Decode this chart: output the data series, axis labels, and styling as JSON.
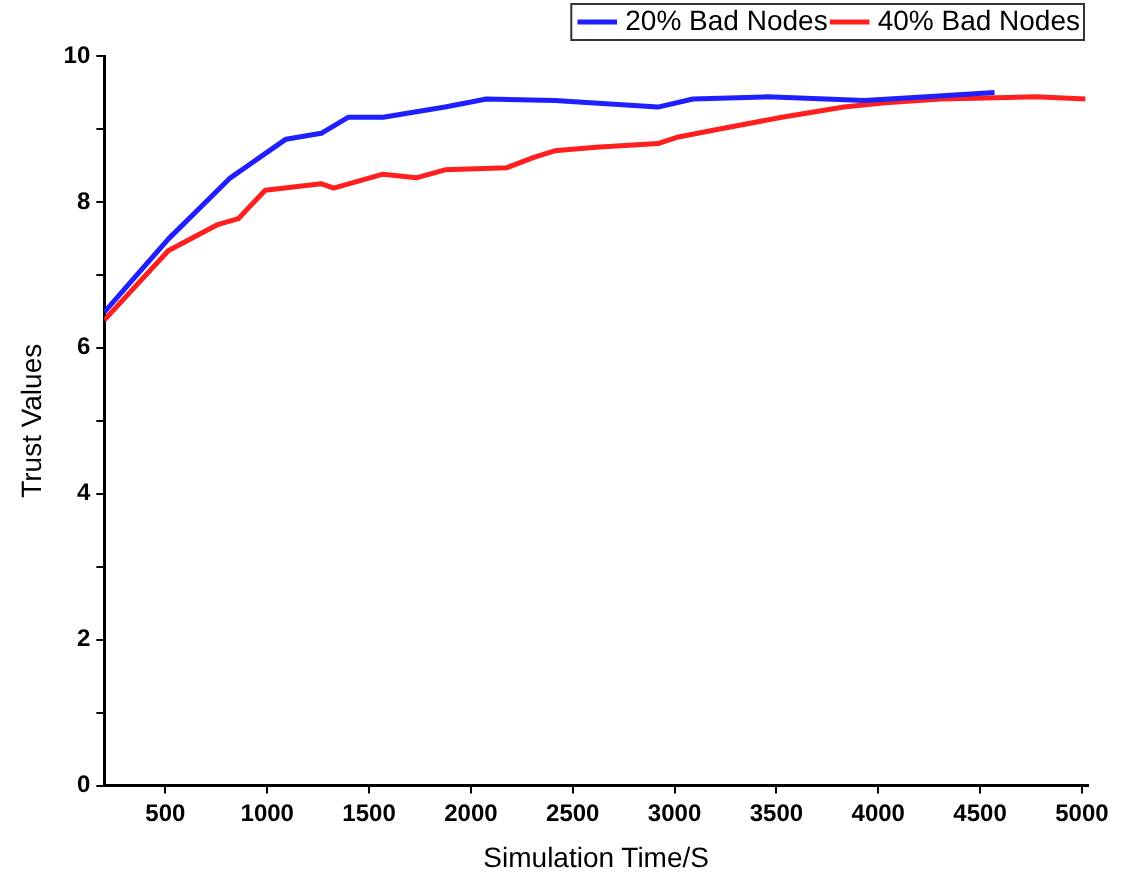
{
  "chart_data": {
    "type": "line",
    "xlabel": "Simulation Time/S",
    "ylabel": "Trust Values",
    "xlim": [
      200,
      5030
    ],
    "xticks": [
      500,
      1000,
      1500,
      2000,
      2500,
      3000,
      3500,
      4000,
      4500,
      5000
    ],
    "ylim": [
      0,
      10
    ],
    "yticks": [
      0,
      {
        "value": 1,
        "label": null
      },
      2,
      {
        "value": 3,
        "label": null
      },
      4,
      {
        "value": 5,
        "label": null
      },
      6,
      {
        "value": 7,
        "label": null
      },
      8,
      {
        "value": 9,
        "label": null
      },
      10
    ],
    "grid": false,
    "legend": "top right",
    "marker": "none",
    "line_style": "solid",
    "series": [
      {
        "name": "20% Bad Nodes",
        "color": "#1f1fff",
        "x": [
          200,
          514,
          819,
          1092,
          1265,
          1397,
          1569,
          1873,
          2076,
          2411,
          2918,
          3090,
          3456,
          3932,
          4237,
          4571
        ],
        "values": [
          6.49,
          7.49,
          8.33,
          8.86,
          8.94,
          9.16,
          9.16,
          9.3,
          9.41,
          9.39,
          9.3,
          9.41,
          9.44,
          9.39,
          9.44,
          9.5
        ]
      },
      {
        "name": "40% Bad Nodes",
        "color": "#ff1f1f",
        "x": [
          200,
          514,
          757,
          858,
          990,
          1265,
          1326,
          1569,
          1731,
          1873,
          2177,
          2309,
          2411,
          2614,
          2918,
          3019,
          3222,
          3527,
          3831,
          4034,
          4308,
          4774,
          5017
        ],
        "values": [
          6.38,
          7.33,
          7.69,
          7.77,
          8.16,
          8.25,
          8.19,
          8.38,
          8.33,
          8.44,
          8.47,
          8.61,
          8.7,
          8.75,
          8.8,
          8.89,
          9.0,
          9.16,
          9.3,
          9.36,
          9.41,
          9.44,
          9.41
        ]
      }
    ]
  }
}
